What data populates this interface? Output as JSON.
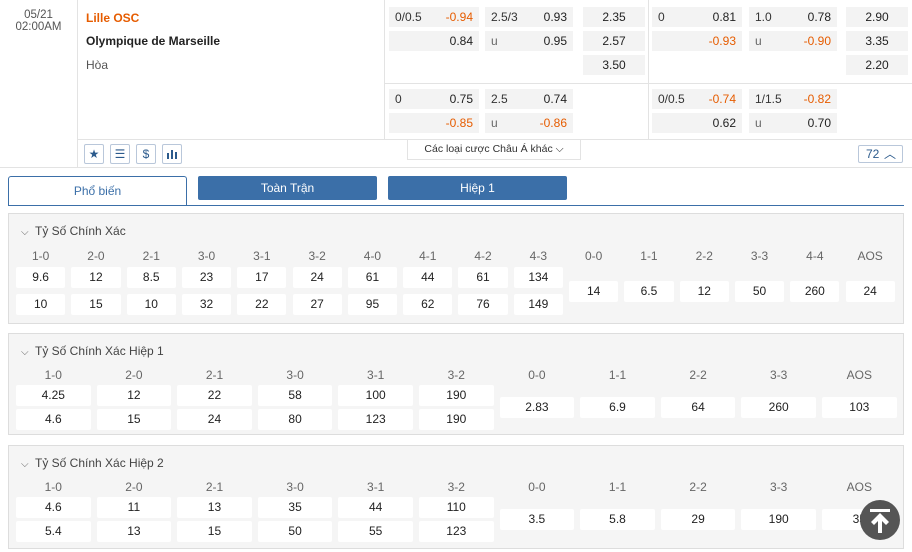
{
  "match": {
    "date": "05/21",
    "time": "02:00AM",
    "home": "Lille OSC",
    "away": "Olympique de Marseille",
    "draw": "Hòa"
  },
  "ft_row1": {
    "hdp": {
      "line": "0/0.5",
      "home": "-0.94",
      "away": "0.84"
    },
    "ou": {
      "line": "2.5/3",
      "over": "0.93",
      "u": "u",
      "under": "0.95"
    },
    "x12": {
      "home": "2.35",
      "away": "2.57",
      "draw": "3.50"
    }
  },
  "ft_row2": {
    "hdp": {
      "line": "0",
      "home": "0.75",
      "away": "-0.85"
    },
    "ou": {
      "line": "2.5",
      "over": "0.74",
      "u": "u",
      "under": "-0.86"
    }
  },
  "h1_row1": {
    "hdp": {
      "line": "0",
      "home": "0.81",
      "away": "-0.93"
    },
    "ou": {
      "line": "1.0",
      "over": "0.78",
      "u": "u",
      "under": "-0.90"
    },
    "x12": {
      "home": "2.90",
      "away": "3.35",
      "draw": "2.20"
    }
  },
  "h1_row2": {
    "hdp": {
      "line": "0/0.5",
      "home": "-0.74",
      "away": "0.62"
    },
    "ou": {
      "line": "1/1.5",
      "over": "-0.82",
      "u": "u",
      "under": "0.70"
    }
  },
  "toolbar": {
    "more": "Các loại cược Châu Á khác",
    "count": "72",
    "icons": [
      "star-icon",
      "list-icon",
      "dollar-icon",
      "chart-icon"
    ]
  },
  "tabs": [
    "Phổ biến",
    "Toàn Trận",
    "Hiệp 1"
  ],
  "p1": {
    "title": "Tỷ Số Chính Xác",
    "headers": [
      "1-0",
      "2-0",
      "2-1",
      "3-0",
      "3-1",
      "3-2",
      "4-0",
      "4-1",
      "4-2",
      "4-3",
      "0-0",
      "1-1",
      "2-2",
      "3-3",
      "4-4",
      "AOS"
    ],
    "row1": [
      "9.6",
      "12",
      "8.5",
      "23",
      "17",
      "24",
      "61",
      "44",
      "61",
      "134"
    ],
    "row2": [
      "10",
      "15",
      "10",
      "32",
      "22",
      "27",
      "95",
      "62",
      "76",
      "149"
    ],
    "mid": [
      "14",
      "6.5",
      "12",
      "50",
      "260",
      "24"
    ]
  },
  "p2": {
    "title": "Tỷ Số Chính Xác Hiệp 1",
    "headers": [
      "1-0",
      "2-0",
      "2-1",
      "3-0",
      "3-1",
      "3-2",
      "0-0",
      "1-1",
      "2-2",
      "3-3",
      "AOS"
    ],
    "row1": [
      "4.25",
      "12",
      "22",
      "58",
      "100",
      "190"
    ],
    "row2": [
      "4.6",
      "15",
      "24",
      "80",
      "123",
      "190"
    ],
    "mid": [
      "2.83",
      "6.9",
      "64",
      "260",
      "103"
    ]
  },
  "p3": {
    "title": "Tỷ Số Chính Xác Hiệp 2",
    "headers": [
      "1-0",
      "2-0",
      "2-1",
      "3-0",
      "3-1",
      "3-2",
      "0-0",
      "1-1",
      "2-2",
      "3-3",
      "AOS"
    ],
    "row1": [
      "4.6",
      "11",
      "13",
      "35",
      "44",
      "110"
    ],
    "row2": [
      "5.4",
      "13",
      "15",
      "50",
      "55",
      "123"
    ],
    "mid": [
      "3.5",
      "5.8",
      "29",
      "190",
      "35"
    ]
  }
}
